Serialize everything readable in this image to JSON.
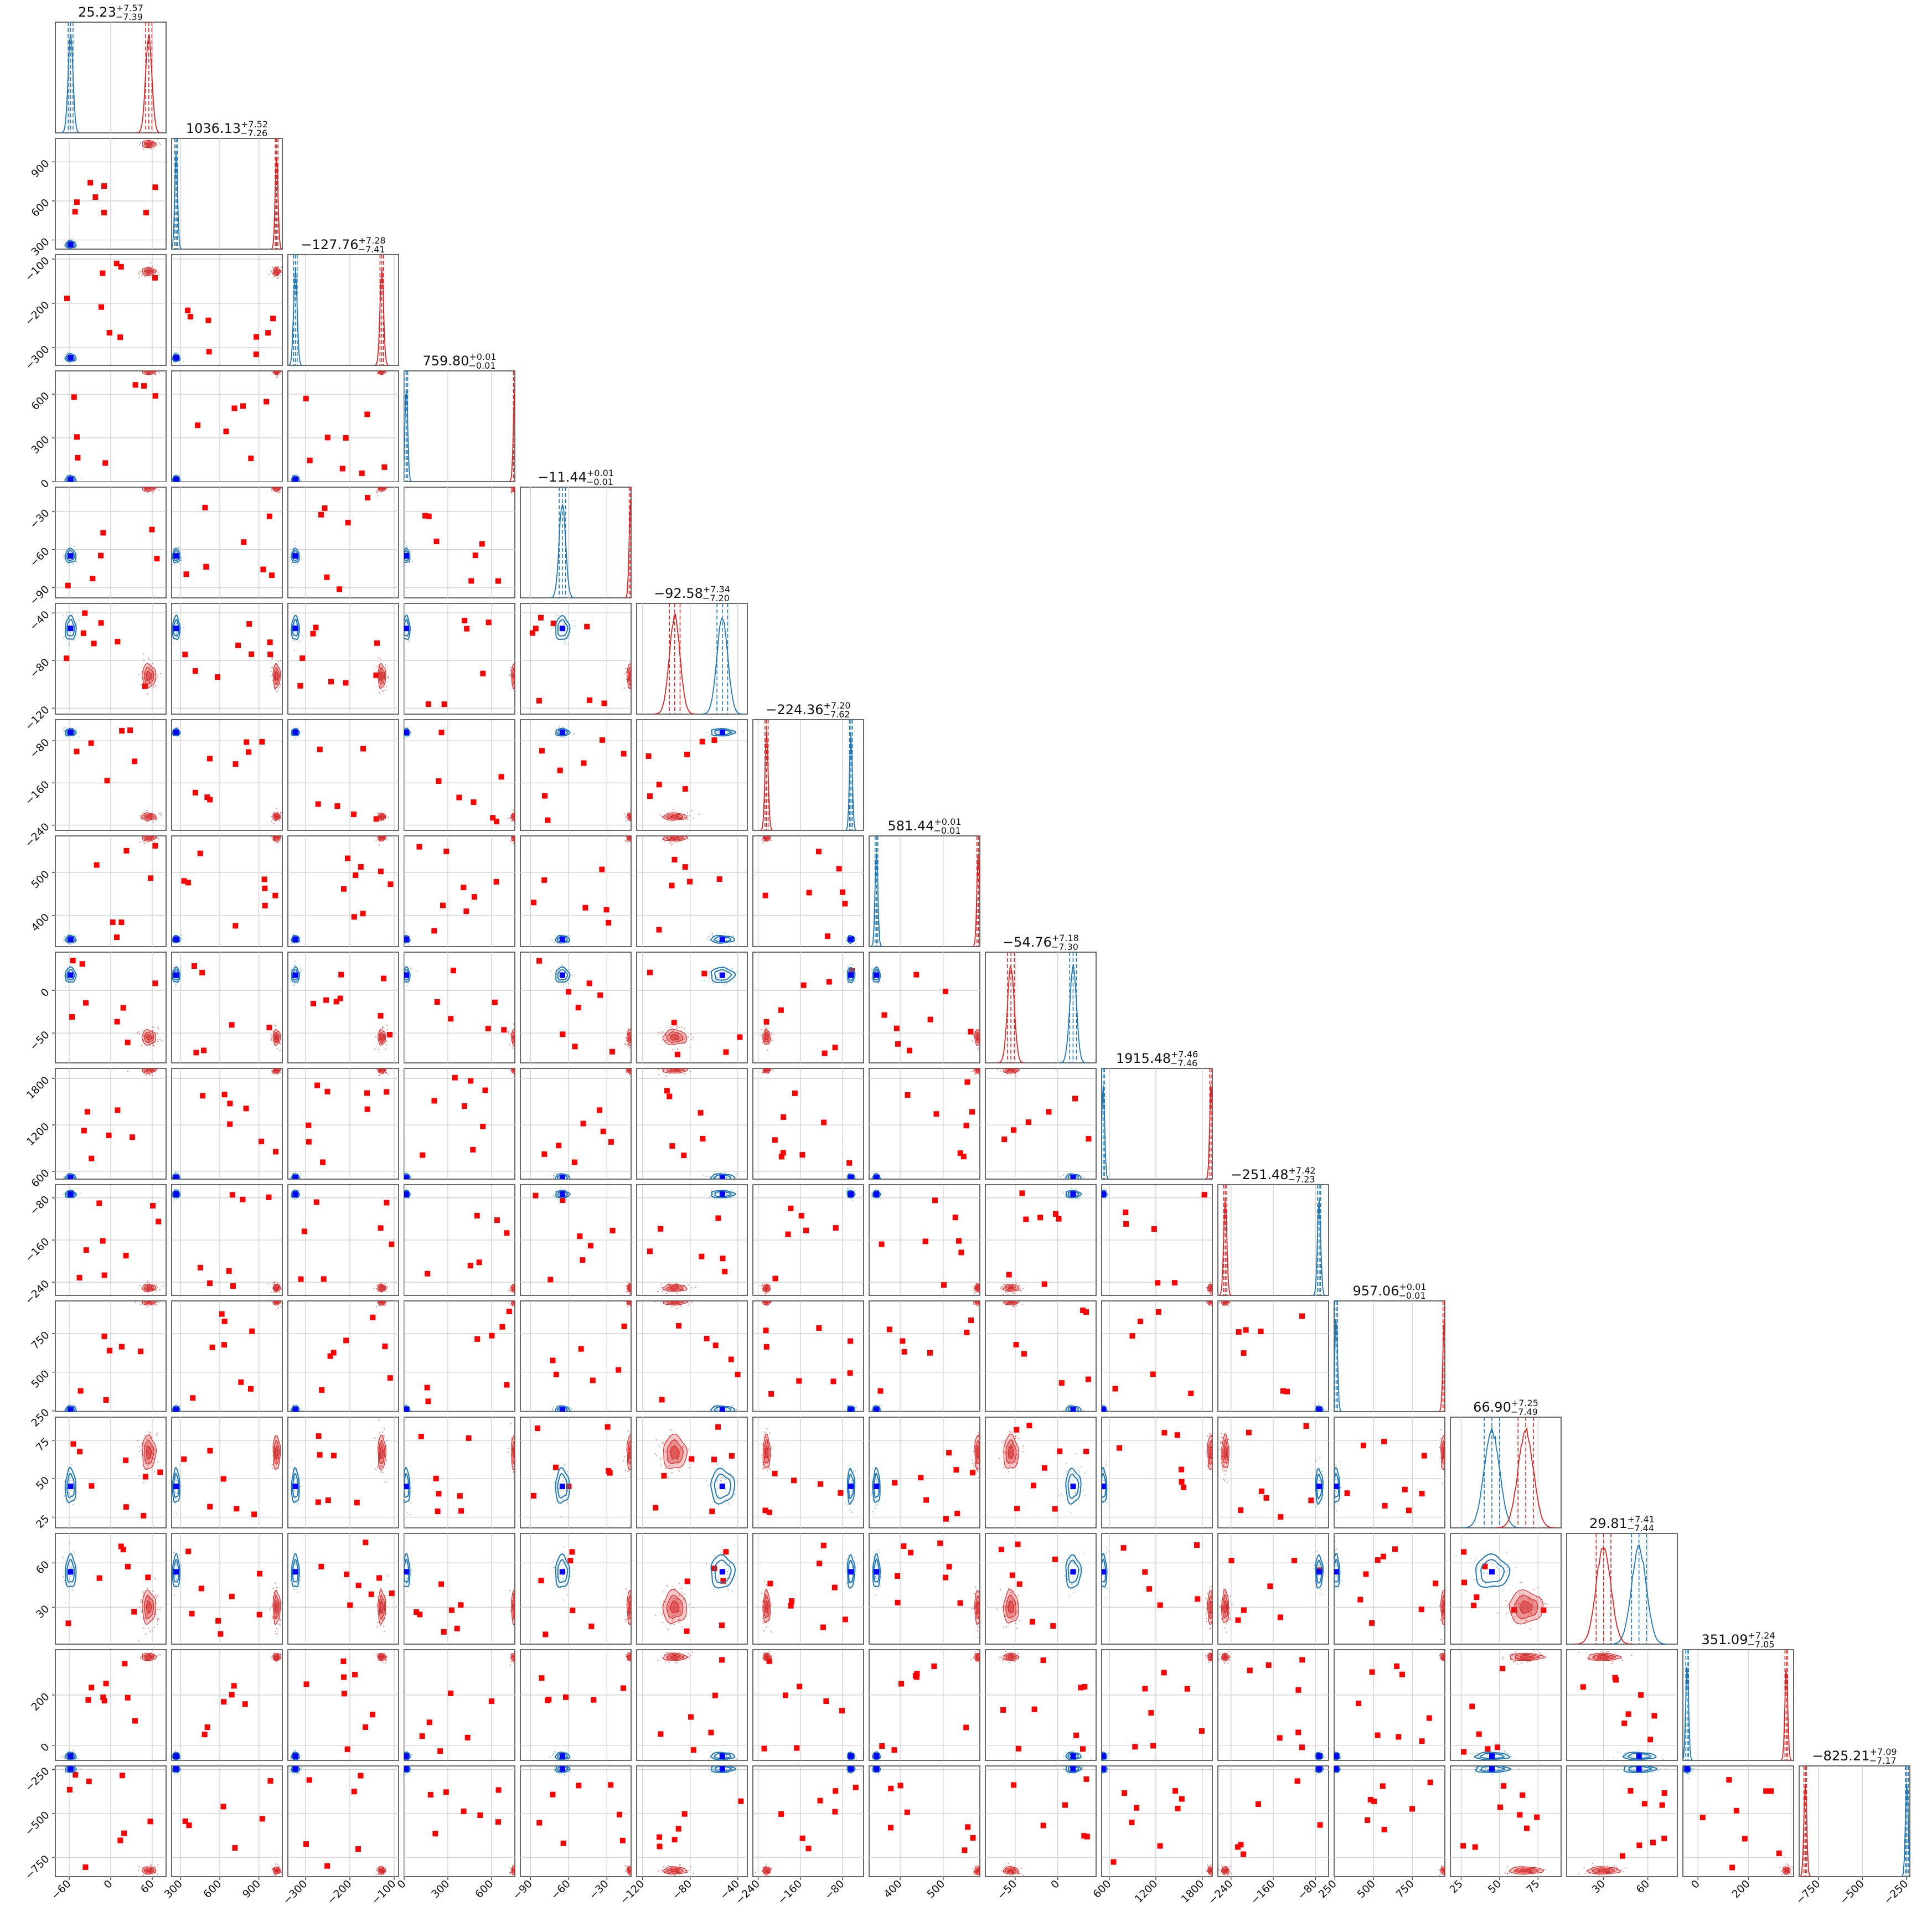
{
  "chart_data": {
    "type": "corner",
    "colors": {
      "blue": "#1f77b4",
      "red": "#d62728",
      "marker_blue": "#0000ff",
      "marker_red": "#ff0000"
    },
    "series": [
      {
        "color": "#1f77b4"
      },
      {
        "color": "#d62728"
      }
    ],
    "grid": true,
    "parameters": [
      {
        "title": {
          "median": "25.23",
          "upper": "+7.57",
          "lower": "−7.39"
        },
        "ticks": [
          -60,
          0,
          60
        ],
        "tick_labels": [
          "−60",
          "0",
          "60"
        ],
        "range": [
          -80,
          80
        ],
        "blue": {
          "mean": -58,
          "sd": 3.5
        },
        "red": {
          "mean": 55,
          "sd": 4.5
        }
      },
      {
        "title": {
          "median": "1036.13",
          "upper": "+7.52",
          "lower": "−7.26"
        },
        "ticks": [
          300,
          600,
          900
        ],
        "tick_labels": [
          "300",
          "600",
          "900"
        ],
        "range": [
          230,
          1080
        ],
        "blue": {
          "mean": 265,
          "sd": 1.5
        },
        "red": {
          "mean": 1036,
          "sd": 2
        }
      },
      {
        "title": {
          "median": "−127.76",
          "upper": "+7.28",
          "lower": "−7.41"
        },
        "ticks": [
          -300,
          -200,
          -100
        ],
        "tick_labels": [
          "−300",
          "−200",
          "−100"
        ],
        "range": [
          -340,
          -90
        ],
        "blue": {
          "mean": -323,
          "sd": 4
        },
        "red": {
          "mean": -128,
          "sd": 4
        }
      },
      {
        "title": {
          "median": "759.80",
          "upper": "+0.01",
          "lower": "−0.01"
        },
        "ticks": [
          0,
          300,
          600
        ],
        "tick_labels": [
          "0",
          "300",
          "600"
        ],
        "range": [
          0,
          760
        ],
        "blue": {
          "mean": 15,
          "sd": 0.6
        },
        "red": {
          "mean": 760,
          "sd": 0.6
        }
      },
      {
        "title": {
          "median": "−11.44",
          "upper": "+0.01",
          "lower": "−0.01"
        },
        "ticks": [
          -90,
          -60,
          -30
        ],
        "tick_labels": [
          "−90",
          "−60",
          "−30"
        ],
        "range": [
          -98,
          -11
        ],
        "blue": {
          "mean": -65,
          "sd": 2.5
        },
        "red": {
          "mean": -11.4,
          "sd": 0.2
        }
      },
      {
        "title": {
          "median": "−92.58",
          "upper": "+7.34",
          "lower": "−7.20"
        },
        "ticks": [
          -120,
          -80,
          -40
        ],
        "tick_labels": [
          "−120",
          "−80",
          "−40"
        ],
        "range": [
          -125,
          -32
        ],
        "blue": {
          "mean": -53,
          "sd": 4.5
        },
        "red": {
          "mean": -93,
          "sd": 4.5
        }
      },
      {
        "title": {
          "median": "−224.36",
          "upper": "+7.20",
          "lower": "−7.62"
        },
        "ticks": [
          -240,
          -160,
          -80
        ],
        "tick_labels": [
          "−240",
          "−160",
          "−80"
        ],
        "range": [
          -250,
          -40
        ],
        "blue": {
          "mean": -64,
          "sd": 2.5
        },
        "red": {
          "mean": -224,
          "sd": 3
        }
      },
      {
        "title": {
          "median": "581.44",
          "upper": "+0.01",
          "lower": "−0.01"
        },
        "ticks": [
          400,
          500
        ],
        "tick_labels": [
          "400",
          "500"
        ],
        "range": [
          328,
          585
        ],
        "blue": {
          "mean": 345,
          "sd": 1.2
        },
        "red": {
          "mean": 581.4,
          "sd": 0.3
        }
      },
      {
        "title": {
          "median": "−54.76",
          "upper": "+7.18",
          "lower": "−7.30"
        },
        "ticks": [
          -50,
          0
        ],
        "tick_labels": [
          "−50",
          "0"
        ],
        "range": [
          -85,
          45
        ],
        "blue": {
          "mean": 18,
          "sd": 4
        },
        "red": {
          "mean": -55,
          "sd": 4
        }
      },
      {
        "title": {
          "median": "1915.48",
          "upper": "+7.46",
          "lower": "−7.46"
        },
        "ticks": [
          600,
          1200,
          1800
        ],
        "tick_labels": [
          "600",
          "1200",
          "1800"
        ],
        "range": [
          500,
          1930
        ],
        "blue": {
          "mean": 520,
          "sd": 2
        },
        "red": {
          "mean": 1915,
          "sd": 2
        }
      },
      {
        "title": {
          "median": "−251.48",
          "upper": "+7.42",
          "lower": "−7.23"
        },
        "ticks": [
          -240,
          -160,
          -80
        ],
        "tick_labels": [
          "−240",
          "−160",
          "−80"
        ],
        "range": [
          -265,
          -55
        ],
        "blue": {
          "mean": -73,
          "sd": 3
        },
        "red": {
          "mean": -251,
          "sd": 3
        }
      },
      {
        "title": {
          "median": "957.06",
          "upper": "+0.01",
          "lower": "−0.01"
        },
        "ticks": [
          250,
          500,
          750
        ],
        "tick_labels": [
          "250",
          "500",
          "750"
        ],
        "range": [
          245,
          960
        ],
        "blue": {
          "mean": 258,
          "sd": 1
        },
        "red": {
          "mean": 957,
          "sd": 0.5
        }
      },
      {
        "title": {
          "median": "66.90",
          "upper": "+7.25",
          "lower": "−7.49"
        },
        "ticks": [
          25,
          50,
          75
        ],
        "tick_labels": [
          "25",
          "50",
          "75"
        ],
        "range": [
          18,
          90
        ],
        "blue": {
          "mean": 45,
          "sd": 5
        },
        "red": {
          "mean": 67,
          "sd": 5
        }
      },
      {
        "title": {
          "median": "29.81",
          "upper": "+7.41",
          "lower": "−7.44"
        },
        "ticks": [
          30,
          60
        ],
        "tick_labels": [
          "30",
          "60"
        ],
        "range": [
          5,
          80
        ],
        "blue": {
          "mean": 54,
          "sd": 5
        },
        "red": {
          "mean": 30,
          "sd": 5
        }
      },
      {
        "title": {
          "median": "351.09",
          "upper": "+7.24",
          "lower": "−7.05"
        },
        "ticks": [
          0,
          200
        ],
        "tick_labels": [
          "0",
          "200"
        ],
        "range": [
          -60,
          380
        ],
        "blue": {
          "mean": -43,
          "sd": 3
        },
        "red": {
          "mean": 351,
          "sd": 3
        }
      },
      {
        "title": {
          "median": "−825.21",
          "upper": "+7.09",
          "lower": "−7.17"
        },
        "ticks": [
          -750,
          -500,
          -250
        ],
        "tick_labels": [
          "−750",
          "−500",
          "−250"
        ],
        "range": [
          -860,
          -230
        ],
        "blue": {
          "mean": -247,
          "sd": 3
        },
        "red": {
          "mean": -825,
          "sd": 3
        }
      }
    ],
    "scatter_note": "red square outlier samples in off-diagonal panels"
  }
}
